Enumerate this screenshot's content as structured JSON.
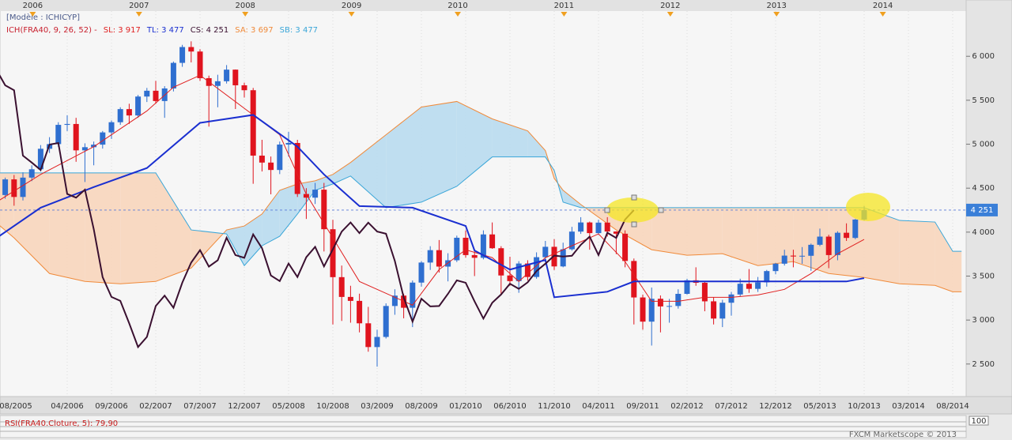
{
  "chart_data": {
    "type": "candlestick",
    "model_label": "[Modèle : ICHICYP]",
    "legend": {
      "prefix": "ICH(FRA40, 9, 26, 52) -",
      "prefix_color": "#c8202e",
      "items": [
        {
          "label": "SL: 3 917",
          "color": "#e02020"
        },
        {
          "label": "TL: 3 477",
          "color": "#1a2fd0"
        },
        {
          "label": "CS: 4 251",
          "color": "#3a1030"
        },
        {
          "label": "SA: 3 697",
          "color": "#f08a3a"
        },
        {
          "label": "SB: 3 477",
          "color": "#3aa6d8"
        }
      ]
    },
    "x": [
      "09/2005",
      "10/2005",
      "11/2005",
      "12/2005",
      "01/2006",
      "02/2006",
      "03/2006",
      "04/2006",
      "05/2006",
      "06/2006",
      "07/2006",
      "08/2006",
      "09/2006",
      "10/2006",
      "11/2006",
      "12/2006",
      "01/2007",
      "02/2007",
      "03/2007",
      "04/2007",
      "05/2007",
      "06/2007",
      "07/2007",
      "08/2007",
      "09/2007",
      "10/2007",
      "11/2007",
      "12/2007",
      "01/2008",
      "02/2008",
      "03/2008",
      "04/2008",
      "05/2008",
      "06/2008",
      "07/2008",
      "08/2008",
      "09/2008",
      "10/2008",
      "11/2008",
      "12/2008",
      "01/2009",
      "02/2009",
      "03/2009",
      "04/2009",
      "05/2009",
      "06/2009",
      "07/2009",
      "08/2009",
      "09/2009",
      "10/2009",
      "11/2009",
      "12/2009",
      "01/2010",
      "02/2010",
      "03/2010",
      "04/2010",
      "05/2010",
      "06/2010",
      "07/2010",
      "08/2010",
      "09/2010",
      "10/2010",
      "11/2010",
      "12/2010",
      "01/2011",
      "02/2011",
      "03/2011",
      "04/2011",
      "05/2011",
      "06/2011",
      "07/2011",
      "08/2011",
      "09/2011",
      "10/2011",
      "11/2011",
      "12/2011",
      "01/2012",
      "02/2012",
      "03/2012",
      "04/2012",
      "05/2012",
      "06/2012",
      "07/2012",
      "08/2012",
      "09/2012",
      "10/2012",
      "11/2012",
      "12/2012",
      "01/2013",
      "02/2013",
      "03/2013",
      "04/2013",
      "05/2013",
      "06/2013",
      "07/2013",
      "08/2013",
      "09/2013",
      "10/2013"
    ],
    "open": [
      4422,
      4600,
      4400,
      4620,
      4715,
      4948,
      5001,
      5220,
      5230,
      4930,
      4966,
      4995,
      5134,
      5250,
      5399,
      5327,
      5542,
      5608,
      5491,
      5634,
      5925,
      6105,
      6054,
      5751,
      5663,
      5716,
      5848,
      5670,
      5614,
      4870,
      4791,
      4707,
      4996,
      5014,
      4434,
      4392,
      4483,
      4033,
      3488,
      3263,
      3218,
      2963,
      2693,
      2808,
      3160,
      3278,
      3140,
      3426,
      3654,
      3795,
      3608,
      3680,
      3936,
      3739,
      3708,
      3974,
      3817,
      3507,
      3443,
      3643,
      3490,
      3715,
      3833,
      3610,
      3805,
      4006,
      4110,
      3989,
      4108,
      4007,
      3982,
      3672,
      3257,
      2982,
      3242,
      3155,
      3160,
      3298,
      3452,
      3424,
      3213,
      3017,
      3197,
      3291,
      3413,
      3355,
      3429,
      3557,
      3641,
      3733,
      3723,
      3731,
      3856,
      3949,
      3739,
      3993,
      3934,
      4143
    ],
    "high": [
      4620,
      4650,
      4680,
      4760,
      4990,
      5080,
      5250,
      5330,
      5300,
      5010,
      5030,
      5150,
      5270,
      5420,
      5460,
      5560,
      5640,
      5720,
      5660,
      5940,
      6130,
      6170,
      6080,
      5780,
      5790,
      5900,
      5850,
      5700,
      5640,
      5050,
      4860,
      5030,
      5140,
      5050,
      4500,
      4560,
      4560,
      4140,
      3620,
      3390,
      3300,
      3150,
      2890,
      3190,
      3350,
      3300,
      3450,
      3670,
      3840,
      3910,
      3760,
      3960,
      4020,
      3780,
      4020,
      4110,
      3840,
      3720,
      3670,
      3680,
      3770,
      3900,
      3920,
      3880,
      4060,
      4170,
      4120,
      4140,
      4170,
      4010,
      4020,
      3700,
      3290,
      3370,
      3280,
      3240,
      3350,
      3470,
      3600,
      3440,
      3260,
      3230,
      3320,
      3470,
      3580,
      3490,
      3570,
      3650,
      3800,
      3800,
      3830,
      3870,
      4040,
      3970,
      4010,
      4100,
      4150,
      4300
    ],
    "low": [
      4380,
      4300,
      4360,
      4580,
      4690,
      4900,
      4970,
      5150,
      4800,
      4570,
      4760,
      4950,
      5060,
      5220,
      5230,
      5300,
      5480,
      5460,
      5300,
      5600,
      5880,
      5930,
      5720,
      5200,
      5420,
      5690,
      5400,
      5530,
      4550,
      4690,
      4430,
      4660,
      4860,
      4400,
      4150,
      4320,
      3780,
      2950,
      2990,
      2970,
      2860,
      2640,
      2470,
      2790,
      3060,
      3020,
      2920,
      3380,
      3570,
      3540,
      3440,
      3660,
      3710,
      3500,
      3690,
      3810,
      3300,
      3390,
      3310,
      3450,
      3470,
      3680,
      3570,
      3600,
      3790,
      3980,
      3800,
      3970,
      3950,
      3750,
      3600,
      2950,
      2890,
      2710,
      2860,
      2970,
      3130,
      3290,
      3390,
      3100,
      2950,
      2920,
      3050,
      3270,
      3310,
      3320,
      3380,
      3520,
      3620,
      3600,
      3640,
      3560,
      3840,
      3590,
      3680,
      3900,
      3920,
      4130
    ],
    "close": [
      4600,
      4400,
      4620,
      4715,
      4948,
      5001,
      5220,
      5230,
      4930,
      4966,
      4995,
      5134,
      5250,
      5399,
      5327,
      5542,
      5608,
      5491,
      5634,
      5925,
      6105,
      6054,
      5751,
      5663,
      5716,
      5848,
      5670,
      5614,
      4870,
      4791,
      4707,
      4996,
      5014,
      4434,
      4392,
      4483,
      4033,
      3488,
      3263,
      3218,
      2963,
      2693,
      2808,
      3160,
      3278,
      3140,
      3426,
      3654,
      3795,
      3608,
      3680,
      3936,
      3739,
      3708,
      3974,
      3817,
      3507,
      3443,
      3643,
      3490,
      3715,
      3833,
      3610,
      3805,
      4006,
      4110,
      3989,
      4108,
      4007,
      3982,
      3672,
      3257,
      2982,
      3242,
      3155,
      3160,
      3298,
      3452,
      3424,
      3213,
      3017,
      3197,
      3291,
      3413,
      3355,
      3429,
      3557,
      3641,
      3733,
      3723,
      3731,
      3856,
      3949,
      3739,
      3993,
      3934,
      4143,
      4251
    ],
    "up_color": "#2f6fd0",
    "down_color": "#e0141e",
    "series": [
      {
        "color": "#e02020",
        "width": 1,
        "x": [
          "07/2005",
          "01/2006",
          "07/2006",
          "01/2007",
          "04/2007",
          "07/2007",
          "01/2008",
          "04/2008",
          "07/2008",
          "10/2008",
          "01/2009",
          "04/2009",
          "07/2009",
          "10/2009",
          "01/2010",
          "04/2010",
          "07/2010",
          "10/2010",
          "01/2011",
          "04/2011",
          "07/2011",
          "10/2011",
          "01/2012",
          "04/2012",
          "07/2012",
          "10/2012",
          "01/2013",
          "04/2013",
          "07/2013",
          "10/2013"
        ],
        "values": [
          4278,
          4656,
          4972,
          5378,
          5648,
          5784,
          5333,
          5107,
          4431,
          3935,
          3439,
          3304,
          3169,
          3574,
          3800,
          3710,
          3439,
          3710,
          3845,
          3980,
          3665,
          3214,
          3214,
          3259,
          3259,
          3286,
          3349,
          3529,
          3755,
          3917
        ]
      },
      {
        "color": "#1a2fd0",
        "width": 2,
        "x": [
          "07/2005",
          "01/2006",
          "07/2006",
          "01/2007",
          "07/2007",
          "01/2008",
          "06/2008",
          "09/2008",
          "01/2009",
          "07/2009",
          "01/2010",
          "02/2010",
          "06/2010",
          "10/2010",
          "11/2010",
          "05/2011",
          "08/2011",
          "08/2013",
          "10/2013"
        ],
        "values": [
          3863,
          4278,
          4512,
          4729,
          5243,
          5333,
          4972,
          4656,
          4296,
          4278,
          4070,
          3791,
          3574,
          3683,
          3259,
          3322,
          3439,
          3439,
          3477
        ]
      },
      {
        "color": "#3a1030",
        "width": 2,
        "x": [
          "07/2005",
          "08/2005",
          "09/2005",
          "10/2005",
          "11/2005",
          "12/2005",
          "01/2006",
          "02/2006",
          "03/2006",
          "04/2006",
          "05/2006",
          "06/2006",
          "07/2006",
          "08/2006",
          "09/2006",
          "10/2006",
          "11/2006",
          "12/2006",
          "01/2007",
          "02/2007",
          "03/2007",
          "04/2007",
          "05/2007",
          "06/2007",
          "07/2007",
          "08/2007",
          "09/2007",
          "10/2007",
          "11/2007",
          "12/2007",
          "01/2008",
          "02/2008",
          "03/2008",
          "04/2008",
          "05/2008",
          "06/2008",
          "07/2008",
          "08/2008",
          "09/2008",
          "10/2008",
          "11/2008",
          "12/2008",
          "01/2009",
          "02/2009",
          "03/2009",
          "04/2009",
          "05/2009",
          "06/2009",
          "07/2009",
          "08/2009",
          "09/2009",
          "10/2009",
          "11/2009",
          "12/2009",
          "01/2010",
          "02/2010",
          "03/2010",
          "04/2010",
          "05/2010",
          "06/2010",
          "07/2010",
          "08/2010",
          "09/2010",
          "10/2010",
          "11/2010",
          "12/2010",
          "01/2011",
          "02/2011",
          "03/2011",
          "04/2011",
          "05/2011",
          "06/2011",
          "07/2011",
          "08/2011"
        ],
        "values": [
          5716,
          5848,
          5670,
          5614,
          4870,
          4791,
          4707,
          4996,
          5014,
          4434,
          4392,
          4483,
          4033,
          3488,
          3263,
          3218,
          2963,
          2693,
          2808,
          3160,
          3278,
          3140,
          3426,
          3654,
          3795,
          3608,
          3680,
          3936,
          3739,
          3708,
          3974,
          3817,
          3507,
          3443,
          3643,
          3490,
          3715,
          3833,
          3610,
          3805,
          4006,
          4110,
          3989,
          4108,
          4007,
          3982,
          3672,
          3257,
          2982,
          3242,
          3155,
          3160,
          3298,
          3452,
          3424,
          3213,
          3017,
          3197,
          3291,
          3413,
          3355,
          3429,
          3557,
          3641,
          3733,
          3723,
          3731,
          3856,
          3949,
          3739,
          3993,
          3934,
          4143,
          4251
        ]
      }
    ],
    "cloud": {
      "x": [
        "06/2005",
        "10/2005",
        "02/2006",
        "06/2006",
        "10/2006",
        "02/2007",
        "06/2007",
        "10/2007",
        "12/2007",
        "02/2008",
        "04/2008",
        "06/2008",
        "08/2008",
        "10/2008",
        "12/2008",
        "04/2009",
        "08/2009",
        "12/2009",
        "04/2010",
        "08/2010",
        "10/2010",
        "11/2010",
        "12/2010",
        "02/2011",
        "06/2011",
        "10/2011",
        "02/2012",
        "06/2012",
        "10/2012",
        "02/2013",
        "06/2013",
        "10/2013",
        "02/2014",
        "06/2014",
        "08/2014",
        "09/2014"
      ],
      "span_a": [
        4278,
        3935,
        3529,
        3439,
        3412,
        3439,
        3592,
        4025,
        4070,
        4206,
        4476,
        4548,
        4584,
        4656,
        4792,
        5107,
        5423,
        5486,
        5288,
        5152,
        4927,
        4611,
        4476,
        4314,
        4025,
        3800,
        3737,
        3755,
        3619,
        3665,
        3529,
        3484,
        3412,
        3394,
        3322,
        3322
      ],
      "span_b": [
        4674,
        4674,
        4674,
        4674,
        4674,
        4674,
        4025,
        3980,
        3619,
        3845,
        3953,
        4206,
        4476,
        4548,
        4638,
        4278,
        4341,
        4521,
        4855,
        4855,
        4855,
        4702,
        4341,
        4278,
        4278,
        4278,
        4278,
        4278,
        4278,
        4278,
        4278,
        4278,
        4133,
        4115,
        3782,
        3782
      ],
      "a_color": "#f08a3a",
      "b_color": "#3aa6d8",
      "bull_fill": "#b9dcef",
      "bear_fill": "#f8d6bd"
    },
    "ylim": [
      2130,
      6640
    ],
    "yticks": [
      {
        "value": 2500,
        "label": "2 500"
      },
      {
        "value": 3000,
        "label": "3 000"
      },
      {
        "value": 3500,
        "label": "3 500"
      },
      {
        "value": 4000,
        "label": "4 000"
      },
      {
        "value": 4500,
        "label": "4 500"
      },
      {
        "value": 5000,
        "label": "5 000"
      },
      {
        "value": 5500,
        "label": "5 500"
      },
      {
        "value": 6000,
        "label": "6 000"
      }
    ],
    "xticks": [
      "08/2005",
      "04/2006",
      "09/2006",
      "02/2007",
      "07/2007",
      "12/2007",
      "05/2008",
      "10/2008",
      "03/2009",
      "08/2009",
      "01/2010",
      "06/2010",
      "11/2010",
      "04/2011",
      "09/2011",
      "02/2012",
      "07/2012",
      "12/2012",
      "05/2013",
      "10/2013",
      "03/2014",
      "08/2014"
    ],
    "year_ticks": [
      "2006",
      "2007",
      "2008",
      "2009",
      "2010",
      "2011",
      "2012",
      "2013",
      "2014"
    ],
    "grid": true,
    "last_price": {
      "value": 4251,
      "label": "4 251"
    },
    "rsi_label": "RSI(FRA40.Cloture, 5): 79,90",
    "rsi_scale_label": "100",
    "footer": "FXCM Marketscope © 2013"
  }
}
